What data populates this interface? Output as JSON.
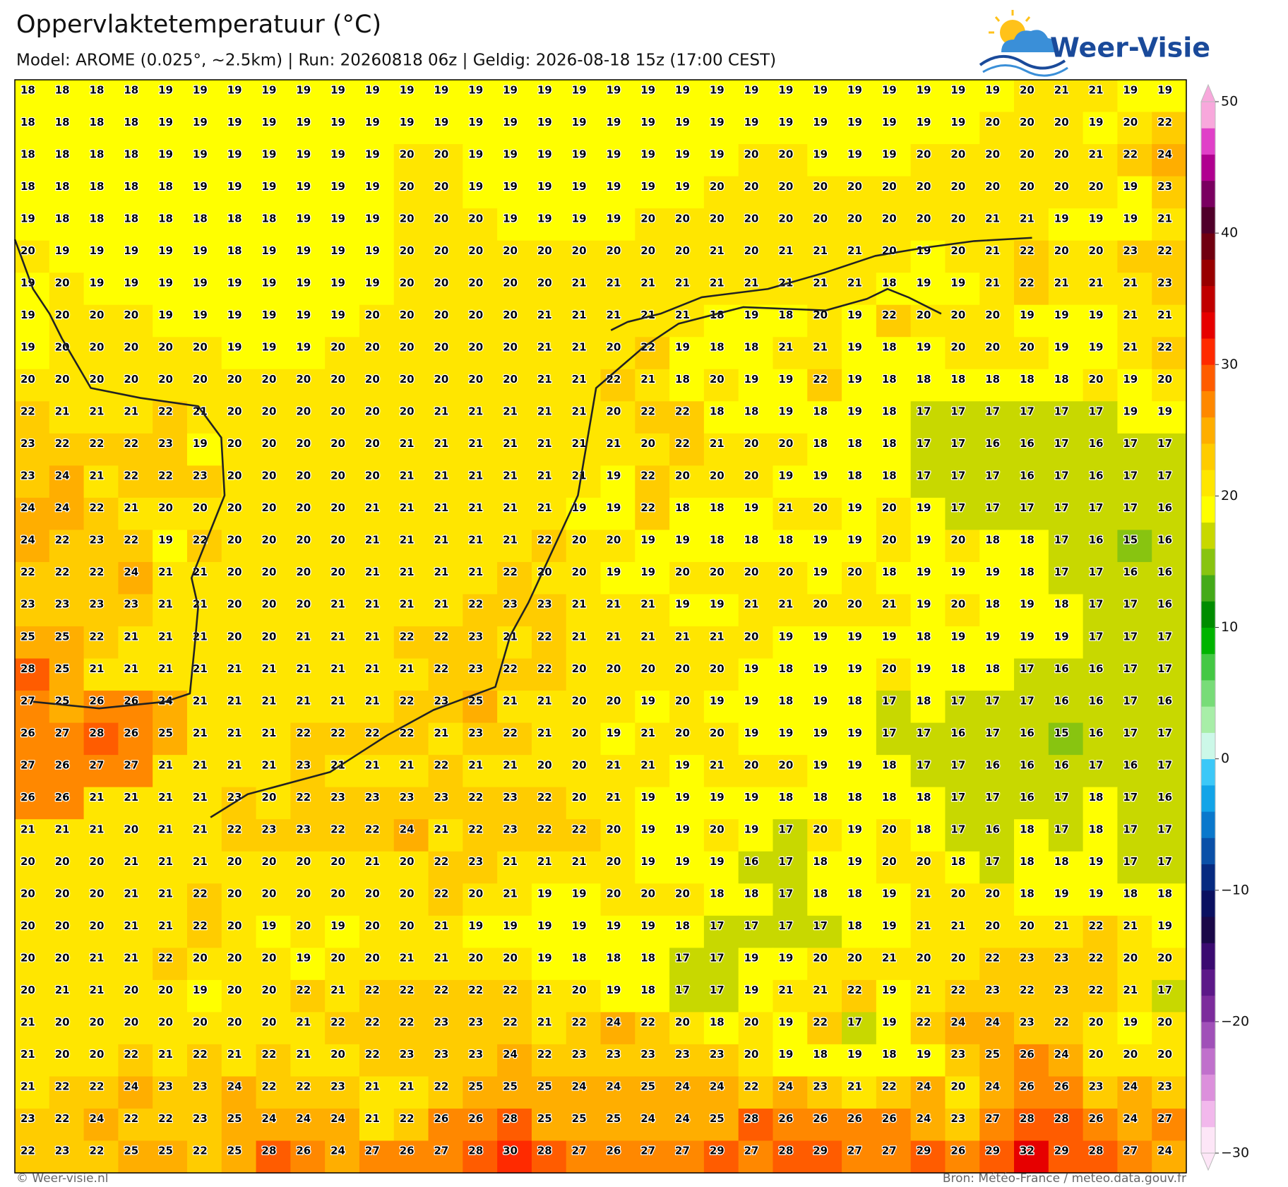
{
  "header": {
    "title": "Oppervlaktetemperatuur (°C)",
    "subtitle": "Model: AROME (0.025°, ~2.5km)  |  Run: 20260818 06z  |  Geldig: 2026-08-18 15z (17:00 CEST)"
  },
  "logo": {
    "text": "Weer-Visie"
  },
  "map": {
    "values": [
      [
        18,
        18,
        18,
        18,
        19,
        19,
        19,
        19,
        19,
        19,
        19,
        19,
        19,
        19,
        19,
        19,
        19,
        19,
        19,
        19,
        19,
        19,
        19,
        19,
        19,
        19,
        19,
        19,
        19,
        20,
        21,
        21,
        19,
        19
      ],
      [
        18,
        18,
        18,
        18,
        19,
        19,
        19,
        19,
        19,
        19,
        19,
        19,
        19,
        19,
        19,
        19,
        19,
        19,
        19,
        19,
        19,
        19,
        19,
        19,
        19,
        19,
        19,
        19,
        20,
        20,
        20,
        19,
        20,
        22
      ],
      [
        18,
        18,
        18,
        18,
        19,
        19,
        19,
        19,
        19,
        19,
        19,
        20,
        20,
        19,
        19,
        19,
        19,
        19,
        19,
        19,
        19,
        20,
        20,
        19,
        19,
        19,
        20,
        20,
        20,
        20,
        20,
        21,
        22,
        24
      ],
      [
        18,
        18,
        18,
        18,
        18,
        19,
        19,
        19,
        19,
        19,
        19,
        20,
        20,
        19,
        19,
        19,
        19,
        19,
        19,
        19,
        20,
        20,
        20,
        20,
        20,
        20,
        20,
        20,
        20,
        20,
        20,
        20,
        19,
        23
      ],
      [
        19,
        18,
        18,
        18,
        18,
        18,
        18,
        18,
        19,
        19,
        19,
        20,
        20,
        20,
        19,
        19,
        19,
        19,
        20,
        20,
        20,
        20,
        20,
        20,
        20,
        20,
        20,
        20,
        21,
        21,
        19,
        19,
        19,
        21
      ],
      [
        20,
        19,
        19,
        19,
        19,
        19,
        18,
        19,
        19,
        19,
        19,
        20,
        20,
        20,
        20,
        20,
        20,
        20,
        20,
        20,
        21,
        20,
        21,
        21,
        21,
        20,
        19,
        20,
        21,
        22,
        20,
        20,
        23,
        22
      ],
      [
        19,
        20,
        19,
        19,
        19,
        19,
        19,
        19,
        19,
        19,
        19,
        20,
        20,
        20,
        20,
        20,
        21,
        21,
        21,
        21,
        21,
        21,
        21,
        21,
        21,
        18,
        19,
        19,
        21,
        22,
        21,
        21,
        21,
        23
      ],
      [
        19,
        20,
        20,
        20,
        19,
        19,
        19,
        19,
        19,
        19,
        20,
        20,
        20,
        20,
        20,
        21,
        21,
        21,
        21,
        21,
        18,
        19,
        18,
        20,
        19,
        22,
        20,
        20,
        20,
        19,
        19,
        19,
        21,
        21
      ],
      [
        19,
        20,
        20,
        20,
        20,
        20,
        19,
        19,
        19,
        20,
        20,
        20,
        20,
        20,
        20,
        21,
        21,
        20,
        22,
        19,
        18,
        18,
        21,
        21,
        19,
        18,
        19,
        20,
        20,
        20,
        19,
        19,
        21,
        22
      ],
      [
        20,
        20,
        20,
        20,
        20,
        20,
        20,
        20,
        20,
        20,
        20,
        20,
        20,
        20,
        20,
        21,
        21,
        22,
        21,
        18,
        20,
        19,
        19,
        22,
        19,
        18,
        18,
        18,
        18,
        18,
        18,
        20,
        19,
        20
      ],
      [
        22,
        21,
        21,
        21,
        22,
        21,
        20,
        20,
        20,
        20,
        20,
        20,
        21,
        21,
        21,
        21,
        21,
        20,
        22,
        22,
        18,
        18,
        19,
        18,
        19,
        18,
        17,
        17,
        17,
        17,
        17,
        17,
        19,
        19
      ],
      [
        23,
        22,
        22,
        22,
        23,
        19,
        20,
        20,
        20,
        20,
        20,
        21,
        21,
        21,
        21,
        21,
        21,
        21,
        20,
        22,
        21,
        20,
        20,
        18,
        18,
        18,
        17,
        17,
        16,
        16,
        17,
        16,
        17,
        17
      ],
      [
        23,
        24,
        21,
        22,
        22,
        23,
        20,
        20,
        20,
        20,
        20,
        21,
        21,
        21,
        21,
        21,
        21,
        19,
        22,
        20,
        20,
        20,
        19,
        19,
        18,
        18,
        17,
        17,
        17,
        16,
        17,
        16,
        17,
        17
      ],
      [
        24,
        24,
        22,
        21,
        20,
        20,
        20,
        20,
        20,
        20,
        21,
        21,
        21,
        21,
        21,
        21,
        19,
        19,
        22,
        18,
        18,
        19,
        21,
        20,
        19,
        20,
        19,
        17,
        17,
        17,
        17,
        17,
        17,
        16
      ],
      [
        24,
        22,
        23,
        22,
        19,
        22,
        20,
        20,
        20,
        20,
        21,
        21,
        21,
        21,
        21,
        22,
        20,
        20,
        19,
        19,
        18,
        18,
        18,
        19,
        19,
        20,
        19,
        20,
        18,
        18,
        17,
        16,
        15,
        16
      ],
      [
        22,
        22,
        22,
        24,
        21,
        21,
        20,
        20,
        20,
        20,
        21,
        21,
        21,
        21,
        22,
        20,
        20,
        19,
        19,
        20,
        20,
        20,
        20,
        19,
        20,
        18,
        19,
        19,
        19,
        18,
        17,
        17,
        16,
        16
      ],
      [
        23,
        23,
        23,
        23,
        21,
        21,
        20,
        20,
        20,
        21,
        21,
        21,
        21,
        22,
        23,
        23,
        21,
        21,
        21,
        19,
        19,
        21,
        21,
        20,
        20,
        21,
        19,
        20,
        18,
        19,
        18,
        17,
        17,
        16
      ],
      [
        25,
        25,
        22,
        21,
        21,
        21,
        20,
        20,
        21,
        21,
        21,
        22,
        22,
        23,
        21,
        22,
        21,
        21,
        21,
        21,
        21,
        20,
        19,
        19,
        19,
        19,
        18,
        19,
        19,
        19,
        19,
        17,
        17,
        17
      ],
      [
        28,
        25,
        21,
        21,
        21,
        21,
        21,
        21,
        21,
        21,
        21,
        21,
        22,
        23,
        22,
        22,
        20,
        20,
        20,
        20,
        20,
        19,
        18,
        19,
        19,
        20,
        19,
        18,
        18,
        17,
        16,
        16,
        17,
        17
      ],
      [
        27,
        25,
        26,
        26,
        24,
        21,
        21,
        21,
        21,
        21,
        21,
        22,
        23,
        25,
        21,
        21,
        20,
        20,
        19,
        20,
        19,
        19,
        18,
        19,
        18,
        17,
        18,
        17,
        17,
        17,
        16,
        16,
        17,
        16
      ],
      [
        26,
        27,
        28,
        26,
        25,
        21,
        21,
        21,
        22,
        22,
        22,
        22,
        21,
        23,
        22,
        21,
        20,
        19,
        21,
        20,
        20,
        19,
        19,
        19,
        19,
        17,
        17,
        16,
        17,
        16,
        15,
        16,
        17,
        17
      ],
      [
        27,
        26,
        27,
        27,
        21,
        21,
        21,
        21,
        23,
        21,
        21,
        21,
        22,
        21,
        21,
        20,
        20,
        21,
        21,
        19,
        21,
        20,
        20,
        19,
        19,
        18,
        17,
        17,
        16,
        16,
        16,
        17,
        16,
        17
      ],
      [
        26,
        26,
        21,
        21,
        21,
        21,
        23,
        20,
        22,
        23,
        23,
        23,
        23,
        22,
        23,
        22,
        20,
        21,
        19,
        19,
        19,
        19,
        18,
        18,
        18,
        18,
        18,
        17,
        17,
        16,
        17,
        18,
        17,
        16
      ],
      [
        21,
        21,
        21,
        20,
        21,
        21,
        22,
        23,
        23,
        22,
        22,
        24,
        21,
        22,
        23,
        22,
        22,
        20,
        19,
        19,
        20,
        19,
        17,
        20,
        19,
        20,
        18,
        17,
        16,
        18,
        17,
        18,
        17,
        17
      ],
      [
        20,
        20,
        20,
        21,
        21,
        21,
        20,
        20,
        20,
        20,
        21,
        20,
        22,
        23,
        21,
        21,
        21,
        20,
        19,
        19,
        19,
        16,
        17,
        18,
        19,
        20,
        20,
        18,
        17,
        18,
        18,
        19,
        17,
        17
      ],
      [
        20,
        20,
        20,
        21,
        21,
        22,
        20,
        20,
        20,
        20,
        20,
        20,
        22,
        20,
        21,
        19,
        19,
        20,
        20,
        20,
        18,
        18,
        17,
        18,
        18,
        19,
        21,
        20,
        20,
        18,
        19,
        19,
        18,
        18
      ],
      [
        20,
        20,
        20,
        21,
        21,
        22,
        20,
        19,
        20,
        19,
        20,
        20,
        21,
        19,
        19,
        19,
        19,
        19,
        19,
        18,
        17,
        17,
        17,
        17,
        18,
        19,
        21,
        21,
        20,
        20,
        21,
        22,
        21,
        19
      ],
      [
        20,
        20,
        21,
        21,
        22,
        20,
        20,
        20,
        19,
        20,
        20,
        21,
        21,
        20,
        20,
        19,
        18,
        18,
        18,
        17,
        17,
        19,
        19,
        20,
        20,
        21,
        20,
        20,
        22,
        23,
        23,
        22,
        20,
        20
      ],
      [
        20,
        21,
        21,
        20,
        20,
        19,
        20,
        20,
        22,
        21,
        22,
        22,
        22,
        22,
        22,
        21,
        20,
        19,
        18,
        17,
        17,
        19,
        21,
        21,
        22,
        19,
        21,
        22,
        23,
        22,
        23,
        22,
        21,
        17
      ],
      [
        21,
        20,
        20,
        20,
        20,
        20,
        20,
        20,
        21,
        22,
        22,
        22,
        23,
        23,
        22,
        21,
        22,
        24,
        22,
        20,
        18,
        20,
        19,
        22,
        17,
        19,
        22,
        24,
        24,
        23,
        22,
        20,
        19,
        20
      ],
      [
        21,
        20,
        20,
        22,
        21,
        22,
        21,
        22,
        21,
        20,
        22,
        23,
        23,
        23,
        24,
        22,
        23,
        23,
        23,
        23,
        23,
        20,
        19,
        18,
        19,
        18,
        19,
        23,
        25,
        26,
        24,
        20,
        20,
        20
      ],
      [
        21,
        22,
        22,
        24,
        23,
        23,
        24,
        22,
        22,
        23,
        21,
        21,
        22,
        25,
        25,
        25,
        24,
        24,
        25,
        24,
        24,
        22,
        24,
        23,
        21,
        22,
        24,
        20,
        24,
        26,
        26,
        23,
        24,
        23
      ],
      [
        23,
        22,
        24,
        22,
        22,
        23,
        25,
        24,
        24,
        24,
        21,
        22,
        26,
        26,
        28,
        25,
        25,
        25,
        24,
        24,
        25,
        28,
        26,
        26,
        26,
        26,
        24,
        23,
        27,
        28,
        28,
        26,
        24,
        27
      ],
      [
        22,
        23,
        22,
        25,
        25,
        22,
        25,
        28,
        26,
        24,
        27,
        26,
        27,
        28,
        30,
        28,
        27,
        26,
        27,
        27,
        29,
        27,
        28,
        29,
        27,
        27,
        29,
        26,
        29,
        32,
        29,
        28,
        27,
        24
      ]
    ]
  },
  "colorbar": {
    "lim": [
      -30,
      50
    ],
    "colors": [
      "#fde6f7",
      "#f2b8ec",
      "#dc90dc",
      "#c070cc",
      "#a050b8",
      "#7c2c9c",
      "#5c1888",
      "#3a0a70",
      "#1a0848",
      "#0a1060",
      "#062a80",
      "#0a50a8",
      "#0a78cc",
      "#12a4e8",
      "#3cc8f8",
      "#ccf8e8",
      "#a8eea8",
      "#78dc78",
      "#44c844",
      "#00b400",
      "#008c00",
      "#44aa18",
      "#88c410",
      "#c8d800",
      "#ffff00",
      "#ffe600",
      "#ffcc00",
      "#ffae00",
      "#ff8800",
      "#ff5c00",
      "#ff2a00",
      "#e60000",
      "#c00000",
      "#980000",
      "#700010",
      "#50002a",
      "#7a0060",
      "#b00090",
      "#e040c8",
      "#f8a8dc"
    ],
    "ticks": [
      50,
      40,
      30,
      20,
      10,
      0,
      {
        "value": -10,
        "label": "−10"
      },
      {
        "value": -20,
        "label": "−20"
      },
      {
        "value": -30,
        "label": "−30"
      }
    ]
  },
  "footer": {
    "left": "© Weer-visie.nl",
    "right": "Bron: Météo-France / meteo.data.gouv.fr"
  }
}
